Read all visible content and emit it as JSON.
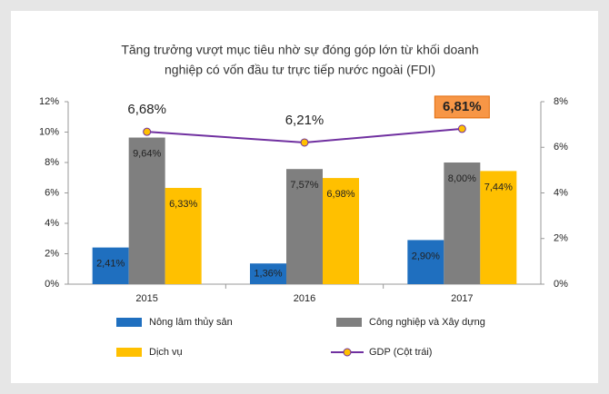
{
  "chart_data": {
    "type": "bar",
    "title": [
      "Tăng trưởng vượt mục tiêu nhờ sự đóng góp lớn từ khối doanh",
      "nghiệp có vốn đầu tư trực tiếp nước ngoài (FDI)"
    ],
    "categories": [
      "2015",
      "2016",
      "2017"
    ],
    "series": [
      {
        "name": "Nông lâm thủy sản",
        "type": "bar",
        "color": "#1f6fbf",
        "values": [
          2.41,
          1.36,
          2.9
        ],
        "value_labels": [
          "2,41%",
          "1,36%",
          "2,90%"
        ]
      },
      {
        "name": "Công nghiệp và Xây dựng",
        "type": "bar",
        "color": "#7f7f7f",
        "values": [
          9.64,
          7.57,
          8.0
        ],
        "value_labels": [
          "9,64%",
          "7,57%",
          "8,00%"
        ]
      },
      {
        "name": "Dịch vụ",
        "type": "bar",
        "color": "#ffc000",
        "values": [
          6.33,
          6.98,
          7.44
        ],
        "value_labels": [
          "6,33%",
          "6,98%",
          "7,44%"
        ]
      },
      {
        "name": "GDP (Cột trái)",
        "type": "line",
        "axis": "y2",
        "color": "#7030a0",
        "values": [
          6.68,
          6.21,
          6.81
        ],
        "value_labels": [
          "6,68%",
          "6,21%",
          "6,81%"
        ]
      }
    ],
    "ylim": [
      0,
      12
    ],
    "yticks": [
      {
        "value": 0,
        "label": "0%"
      },
      {
        "value": 2,
        "label": "2%"
      },
      {
        "value": 4,
        "label": "4%"
      },
      {
        "value": 6,
        "label": "6%"
      },
      {
        "value": 8,
        "label": "8%"
      },
      {
        "value": 10,
        "label": "10%"
      },
      {
        "value": 12,
        "label": "12%"
      }
    ],
    "y2lim": [
      0,
      8
    ],
    "y2ticks": [
      {
        "value": 0,
        "label": "0%"
      },
      {
        "value": 2,
        "label": "2%"
      },
      {
        "value": 4,
        "label": "4%"
      },
      {
        "value": 6,
        "label": "6%"
      },
      {
        "value": 8,
        "label": "8%"
      }
    ],
    "grid": false,
    "legend": "bottom"
  }
}
